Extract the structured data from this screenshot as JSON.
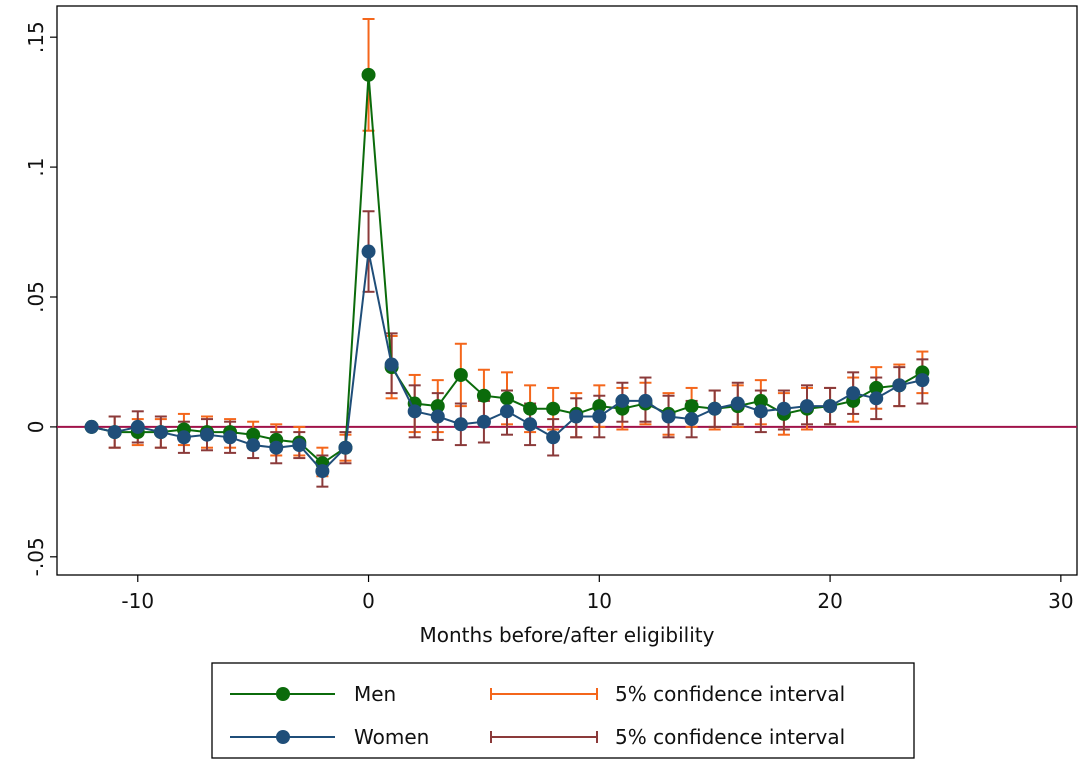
{
  "chart_data": {
    "type": "line",
    "xlabel": "Months before/after eligibility",
    "ylabel": "",
    "xlim": [
      -13.5,
      30.7
    ],
    "ylim": [
      -0.057,
      0.162
    ],
    "x_ticks": [
      -10,
      0,
      10,
      20,
      30
    ],
    "x_tick_labels": [
      "-10",
      "0",
      "10",
      "20",
      "30"
    ],
    "y_ticks": [
      -0.05,
      0,
      0.05,
      0.1,
      0.15
    ],
    "y_tick_labels": [
      "-.05",
      "0",
      ".05",
      ".1",
      ".15"
    ],
    "reference_line_y": 0,
    "grid": false,
    "legend_position": "bottom",
    "legend": [
      {
        "label": "Men",
        "kind": "series",
        "color": "#0b6b0b"
      },
      {
        "label": "5% confidence interval",
        "kind": "ci",
        "color": "#f4661b"
      },
      {
        "label": "Women",
        "kind": "series",
        "color": "#1f4e79"
      },
      {
        "label": "5% confidence interval",
        "kind": "ci",
        "color": "#8b3a3a"
      }
    ],
    "x": [
      -12,
      -11,
      -10,
      -9,
      -8,
      -7,
      -6,
      -5,
      -4,
      -3,
      -2,
      -1,
      0,
      1,
      2,
      3,
      4,
      5,
      6,
      7,
      8,
      9,
      10,
      11,
      12,
      13,
      14,
      15,
      16,
      17,
      18,
      19,
      20,
      21,
      22,
      23,
      24
    ],
    "series": [
      {
        "name": "Men",
        "line_color": "#0b6b0b",
        "ci_color": "#f4661b",
        "values": [
          0.0,
          -0.002,
          -0.002,
          -0.002,
          -0.001,
          -0.002,
          -0.002,
          -0.003,
          -0.005,
          -0.006,
          -0.014,
          -0.008,
          0.1355,
          0.023,
          0.009,
          0.008,
          0.02,
          0.012,
          0.011,
          0.007,
          0.007,
          0.005,
          0.008,
          0.007,
          0.009,
          0.005,
          0.008,
          0.007,
          0.008,
          0.01,
          0.005,
          0.007,
          0.008,
          0.01,
          0.015,
          0.016,
          0.021
        ],
        "ci_lower": [
          0.0,
          -0.008,
          -0.007,
          -0.008,
          -0.007,
          -0.008,
          -0.008,
          -0.008,
          -0.011,
          -0.011,
          -0.019,
          -0.013,
          0.114,
          0.011,
          -0.002,
          -0.002,
          0.008,
          0.002,
          0.001,
          -0.002,
          -0.001,
          -0.004,
          0.0,
          -0.001,
          0.001,
          -0.003,
          0.0,
          -0.001,
          0.0,
          0.001,
          -0.003,
          -0.001,
          0.001,
          0.002,
          0.007,
          0.008,
          0.013
        ],
        "ci_upper": [
          0.0,
          0.004,
          0.003,
          0.003,
          0.005,
          0.004,
          0.003,
          0.002,
          0.001,
          0.0,
          -0.008,
          -0.003,
          0.157,
          0.035,
          0.02,
          0.018,
          0.032,
          0.022,
          0.021,
          0.016,
          0.015,
          0.013,
          0.016,
          0.015,
          0.017,
          0.013,
          0.015,
          0.014,
          0.016,
          0.018,
          0.013,
          0.015,
          0.015,
          0.019,
          0.023,
          0.024,
          0.029
        ]
      },
      {
        "name": "Women",
        "line_color": "#1f4e79",
        "ci_color": "#8b3a3a",
        "values": [
          0.0,
          -0.002,
          0.0,
          -0.002,
          -0.004,
          -0.003,
          -0.004,
          -0.007,
          -0.008,
          -0.007,
          -0.017,
          -0.008,
          0.0675,
          0.024,
          0.006,
          0.004,
          0.001,
          0.002,
          0.006,
          0.001,
          -0.004,
          0.004,
          0.004,
          0.01,
          0.01,
          0.004,
          0.003,
          0.007,
          0.009,
          0.006,
          0.007,
          0.008,
          0.008,
          0.013,
          0.011,
          0.016,
          0.018
        ],
        "ci_lower": [
          0.0,
          -0.008,
          -0.006,
          -0.008,
          -0.01,
          -0.009,
          -0.01,
          -0.012,
          -0.014,
          -0.012,
          -0.023,
          -0.014,
          0.052,
          0.013,
          -0.004,
          -0.005,
          -0.007,
          -0.006,
          -0.003,
          -0.007,
          -0.011,
          -0.004,
          -0.004,
          0.002,
          0.002,
          -0.004,
          -0.004,
          0.0,
          0.001,
          -0.002,
          -0.001,
          0.001,
          0.001,
          0.005,
          0.003,
          0.008,
          0.009
        ],
        "ci_upper": [
          0.0,
          0.004,
          0.006,
          0.004,
          0.002,
          0.003,
          0.002,
          -0.002,
          -0.002,
          -0.002,
          -0.011,
          -0.002,
          0.083,
          0.036,
          0.016,
          0.013,
          0.009,
          0.01,
          0.014,
          0.009,
          0.003,
          0.011,
          0.012,
          0.017,
          0.019,
          0.012,
          0.01,
          0.014,
          0.017,
          0.014,
          0.014,
          0.016,
          0.015,
          0.021,
          0.019,
          0.023,
          0.026
        ]
      }
    ]
  }
}
